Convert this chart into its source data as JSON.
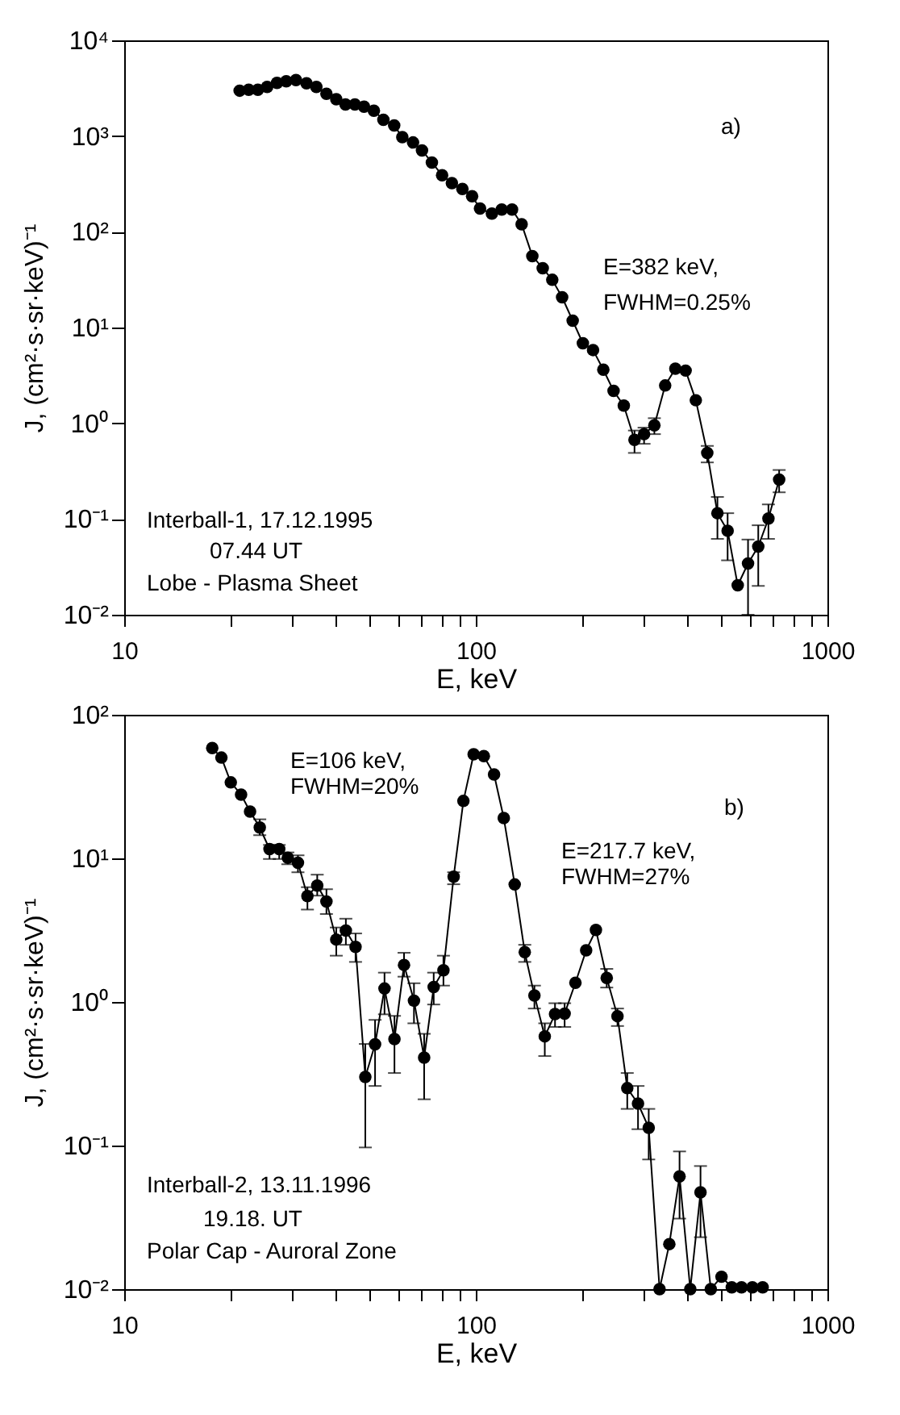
{
  "chart_data": [
    {
      "type": "line",
      "marker": "circle",
      "log": "xy",
      "grid": false,
      "xlabel": "E, keV",
      "ylabel": "J,  (cm²·s·sr·keV)⁻¹",
      "xlim": [
        10,
        1000
      ],
      "ylim": [
        0.01,
        10000
      ],
      "xticks": [
        10,
        {
          "value": 20,
          "label": null
        },
        {
          "value": 30,
          "label": null
        },
        {
          "value": 40,
          "label": null
        },
        {
          "value": 50,
          "label": null
        },
        {
          "value": 60,
          "label": null
        },
        {
          "value": 70,
          "label": null
        },
        {
          "value": 80,
          "label": null
        },
        {
          "value": 90,
          "label": null
        },
        100,
        {
          "value": 200,
          "label": null
        },
        {
          "value": 300,
          "label": null
        },
        {
          "value": 400,
          "label": null
        },
        {
          "value": 500,
          "label": null
        },
        {
          "value": 600,
          "label": null
        },
        {
          "value": 700,
          "label": null
        },
        {
          "value": 800,
          "label": null
        },
        {
          "value": 900,
          "label": null
        },
        1000
      ],
      "yticks": [
        {
          "value": 0.01,
          "label": "10⁻²"
        },
        {
          "value": 0.1,
          "label": "10⁻¹"
        },
        {
          "value": 1,
          "label": "10⁰"
        },
        {
          "value": 10,
          "label": "10¹"
        },
        {
          "value": 100,
          "label": "10²"
        },
        {
          "value": 1000,
          "label": "10³"
        },
        {
          "value": 10000,
          "label": "10⁴"
        }
      ],
      "x": [
        21.3,
        22.6,
        24.0,
        25.5,
        27.2,
        28.9,
        30.8,
        33.0,
        35.2,
        37.6,
        40.1,
        42.6,
        45.3,
        48.1,
        51.3,
        54.6,
        58.6,
        61.8,
        66.3,
        70.3,
        75.0,
        80.2,
        85.5,
        91.6,
        97.6,
        102.8,
        111.1,
        118.5,
        126.8,
        135,
        144.8,
        155,
        165,
        176,
        188.6,
        201.6,
        215.5,
        230.5,
        246.5,
        263.6,
        282.7,
        301,
        322,
        345.6,
        369.4,
        395.1,
        422.4,
        455.3,
        486.6,
        520.2,
        555.8,
        594.6,
        635.8,
        679.6,
        729
      ],
      "series": [
        {
          "color": "#000000",
          "values": [
            2980,
            3050,
            3050,
            3260,
            3600,
            3740,
            3840,
            3560,
            3260,
            2760,
            2430,
            2140,
            2140,
            2030,
            1840,
            1480,
            1290,
            973,
            857,
            708,
            529,
            390,
            322,
            280,
            235,
            175,
            155,
            171,
            171,
            120,
            55.8,
            41.7,
            31.5,
            20.7,
            11.8,
            6.85,
            5.82,
            3.63,
            2.18,
            1.53,
            0.67,
            0.77,
            0.95,
            2.48,
            3.72,
            3.55,
            1.74,
            0.489,
            0.115,
            0.0754,
            0.0203,
            0.0343,
            0.0515,
            0.101,
            0.258
          ],
          "errors": [
            null,
            null,
            null,
            null,
            null,
            null,
            null,
            null,
            null,
            null,
            null,
            null,
            null,
            null,
            null,
            null,
            null,
            null,
            null,
            null,
            null,
            null,
            null,
            null,
            null,
            null,
            null,
            null,
            null,
            null,
            null,
            null,
            null,
            null,
            null,
            null,
            null,
            null,
            null,
            null,
            [
              0.49,
              0.84
            ],
            [
              0.61,
              0.9
            ],
            [
              0.77,
              1.13
            ],
            null,
            null,
            null,
            null,
            [
              0.39,
              0.58
            ],
            [
              0.062,
              0.17
            ],
            [
              0.037,
              0.115
            ],
            null,
            [
              0.01,
              0.061
            ],
            [
              0.02,
              0.086
            ],
            [
              0.062,
              0.142
            ],
            [
              0.19,
              0.325
            ]
          ]
        }
      ],
      "annotations": [
        "a)",
        "E=382 keV,",
        "FWHM=0.25%",
        "Interball-1, 17.12.1995",
        "07.44 UT",
        "Lobe - Plasma Sheet"
      ]
    },
    {
      "type": "line",
      "marker": "circle",
      "log": "xy",
      "grid": false,
      "xlabel": "E, keV",
      "ylabel": "J,  (cm²·s·sr·keV)⁻¹",
      "xlim": [
        10,
        1000
      ],
      "ylim": [
        0.01,
        100
      ],
      "xticks": [
        10,
        {
          "value": 20,
          "label": null
        },
        {
          "value": 30,
          "label": null
        },
        {
          "value": 40,
          "label": null
        },
        {
          "value": 50,
          "label": null
        },
        {
          "value": 60,
          "label": null
        },
        {
          "value": 70,
          "label": null
        },
        {
          "value": 80,
          "label": null
        },
        {
          "value": 90,
          "label": null
        },
        100,
        {
          "value": 200,
          "label": null
        },
        {
          "value": 300,
          "label": null
        },
        {
          "value": 400,
          "label": null
        },
        {
          "value": 500,
          "label": null
        },
        {
          "value": 600,
          "label": null
        },
        {
          "value": 700,
          "label": null
        },
        {
          "value": 800,
          "label": null
        },
        {
          "value": 900,
          "label": null
        },
        1000
      ],
      "yticks": [
        {
          "value": 0.01,
          "label": "10⁻²"
        },
        {
          "value": 0.1,
          "label": "10⁻¹"
        },
        {
          "value": 1,
          "label": "10⁰"
        },
        {
          "value": 10,
          "label": "10¹"
        },
        {
          "value": 100,
          "label": "10²"
        }
      ],
      "x": [
        17.8,
        18.9,
        20.1,
        21.5,
        22.8,
        24.3,
        25.9,
        27.6,
        29.2,
        31.2,
        33.2,
        35.4,
        37.6,
        40.1,
        42.7,
        45.5,
        48.5,
        51.7,
        55.0,
        58.7,
        62.5,
        66.7,
        71.3,
        75.9,
        80.9,
        86.5,
        92.2,
        98.6,
        105.4,
        112.7,
        120.1,
        129.0,
        137.8,
        146.8,
        157.1,
        168.0,
        178.9,
        192.0,
        206.0,
        219.6,
        235.7,
        252.9,
        269.6,
        289.3,
        310.3,
        333.1,
        355.1,
        379.7,
        407.3,
        435.6,
        465.9,
        499.8,
        534.5,
        569.8,
        611.8,
        654.4
      ],
      "series": [
        {
          "color": "#000000",
          "values": [
            58.6,
            50.3,
            33.8,
            27.8,
            21.2,
            16.4,
            11.6,
            11.6,
            10.1,
            9.31,
            5.46,
            6.46,
            5.01,
            2.72,
            3.14,
            2.42,
            0.3,
            0.507,
            1.24,
            0.552,
            1.81,
            1.02,
            0.41,
            1.27,
            1.66,
            7.46,
            25.1,
            53.0,
            51.6,
            38.4,
            19.1,
            6.58,
            2.22,
            1.11,
            0.576,
            0.823,
            0.83,
            1.36,
            2.29,
            3.17,
            1.47,
            0.796,
            0.251,
            0.196,
            0.133,
            0.01,
            0.0206,
            0.061,
            0.01,
            0.0472,
            0.01,
            0.0122,
            0.0103,
            0.0103,
            0.0103,
            0.0103
          ],
          "errors": [
            null,
            null,
            null,
            null,
            null,
            [
              14.5,
              18.7
            ],
            [
              9.9,
              12.4
            ],
            [
              9.9,
              12.4
            ],
            [
              9.1,
              11.0
            ],
            [
              8.0,
              10.5
            ],
            [
              4.4,
              6.3
            ],
            [
              5.5,
              7.7
            ],
            [
              4.1,
              6.1
            ],
            [
              2.1,
              3.3
            ],
            [
              2.5,
              3.8
            ],
            [
              1.9,
              3.0
            ],
            [
              0.097,
              0.51
            ],
            [
              0.26,
              0.75
            ],
            [
              0.82,
              1.6
            ],
            [
              0.32,
              0.8
            ],
            [
              1.5,
              2.2
            ],
            [
              0.71,
              1.35
            ],
            [
              0.21,
              0.6
            ],
            [
              0.96,
              1.6
            ],
            [
              1.3,
              2.1
            ],
            [
              6.6,
              8.0
            ],
            null,
            null,
            null,
            null,
            null,
            null,
            [
              1.9,
              2.5
            ],
            [
              0.9,
              1.3
            ],
            [
              0.42,
              0.71
            ],
            [
              0.67,
              0.98
            ],
            [
              0.67,
              0.98
            ],
            null,
            null,
            null,
            [
              1.26,
              1.7
            ],
            [
              0.68,
              0.9
            ],
            [
              0.18,
              0.32
            ],
            [
              0.13,
              0.26
            ],
            [
              0.08,
              0.18
            ],
            null,
            null,
            [
              0.031,
              0.091
            ],
            null,
            [
              0.023,
              0.072
            ],
            null,
            null,
            null,
            null,
            null,
            null
          ]
        }
      ],
      "annotations": [
        "b)",
        "E=106 keV,",
        "FWHM=20%",
        "E=217.7 keV,",
        "FWHM=27%",
        "Interball-2, 13.11.1996",
        "19.18. UT",
        "Polar Cap - Auroral Zone"
      ]
    }
  ]
}
